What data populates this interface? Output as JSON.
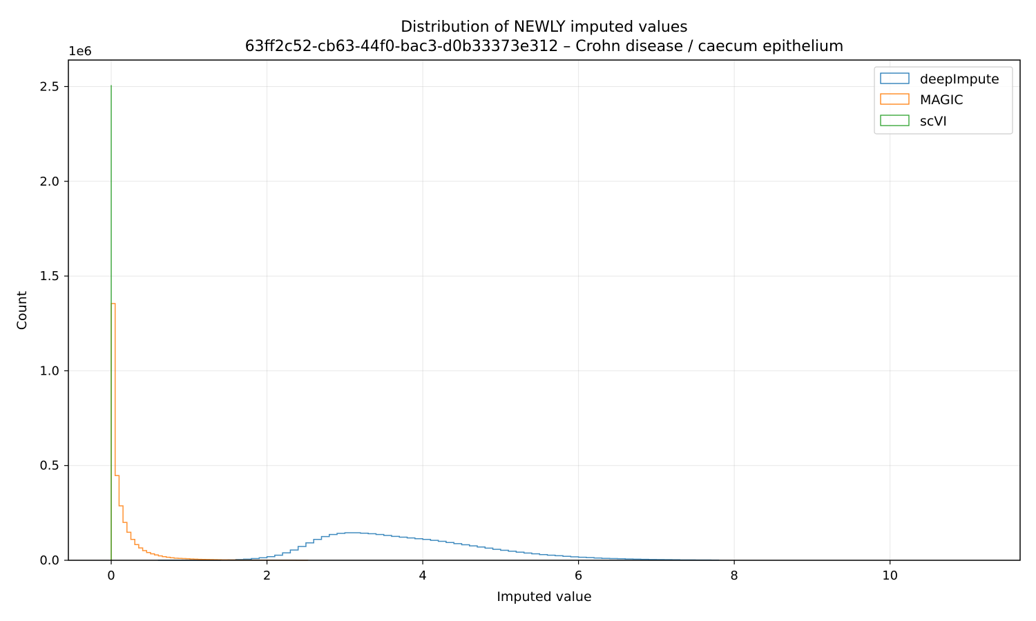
{
  "chart_data": {
    "type": "histogram-step",
    "title": "Distribution of NEWLY imputed values",
    "subtitle": "63ff2c52-cb63-44f0-bac3-d0b33373e312 – Crohn disease / caecum epithelium",
    "xlabel": "Imputed value",
    "ylabel": "Count",
    "y_scale_label": "1e6",
    "xlim": [
      -0.55,
      11.67
    ],
    "ylim": [
      0,
      2.64
    ],
    "xticks": [
      0,
      2,
      4,
      6,
      8,
      10
    ],
    "xtick_labels": [
      "0",
      "2",
      "4",
      "6",
      "8",
      "10"
    ],
    "yticks": [
      0,
      0.5,
      1.0,
      1.5,
      2.0,
      2.5
    ],
    "ytick_labels": [
      "0.0",
      "0.5",
      "1.0",
      "1.5",
      "2.0",
      "2.5"
    ],
    "grid": true,
    "legend_position": "top-right",
    "series": [
      {
        "name": "deepImpute",
        "color": "#1f77b4",
        "bin_width": 0.1,
        "bin_start": 0.6,
        "counts": [
          0,
          0,
          0,
          0,
          0,
          0,
          0,
          0,
          0.001,
          0.002,
          0.004,
          0.006,
          0.009,
          0.013,
          0.019,
          0.027,
          0.039,
          0.054,
          0.073,
          0.092,
          0.11,
          0.125,
          0.136,
          0.142,
          0.145,
          0.145,
          0.143,
          0.14,
          0.136,
          0.131,
          0.126,
          0.122,
          0.118,
          0.114,
          0.11,
          0.105,
          0.1,
          0.094,
          0.088,
          0.082,
          0.076,
          0.07,
          0.064,
          0.058,
          0.053,
          0.048,
          0.043,
          0.038,
          0.034,
          0.03,
          0.027,
          0.024,
          0.021,
          0.018,
          0.016,
          0.014,
          0.012,
          0.01,
          0.009,
          0.008,
          0.007,
          0.006,
          0.005,
          0.004,
          0.0035,
          0.003,
          0.0025,
          0.002,
          0.0017,
          0.0014,
          0.0012,
          0.001
        ]
      },
      {
        "name": "MAGIC",
        "color": "#ff7f0e",
        "bin_width": 0.0505,
        "bin_start": 0,
        "counts": [
          1.355,
          0.447,
          0.287,
          0.2,
          0.148,
          0.11,
          0.083,
          0.065,
          0.051,
          0.041,
          0.034,
          0.028,
          0.023,
          0.019,
          0.016,
          0.013,
          0.011,
          0.01,
          0.009,
          0.008,
          0.007,
          0.006,
          0.005,
          0.0045,
          0.004,
          0.0035,
          0.003,
          0.0027,
          0.0024,
          0.0021,
          0.0019,
          0.0017,
          0.0015,
          0.0013,
          0.0012,
          0.0011,
          0.001,
          0.0009,
          0.0008,
          0.0007,
          0.0006,
          0.0005,
          0.0005,
          0.0004,
          0.0004,
          0.0003,
          0.0003,
          0.0002,
          0.0002,
          0.0001
        ]
      },
      {
        "name": "scVI",
        "color": "#2ca02c",
        "bin_width": 0.0005,
        "bin_start": 0,
        "counts": [
          2.505
        ]
      }
    ]
  }
}
